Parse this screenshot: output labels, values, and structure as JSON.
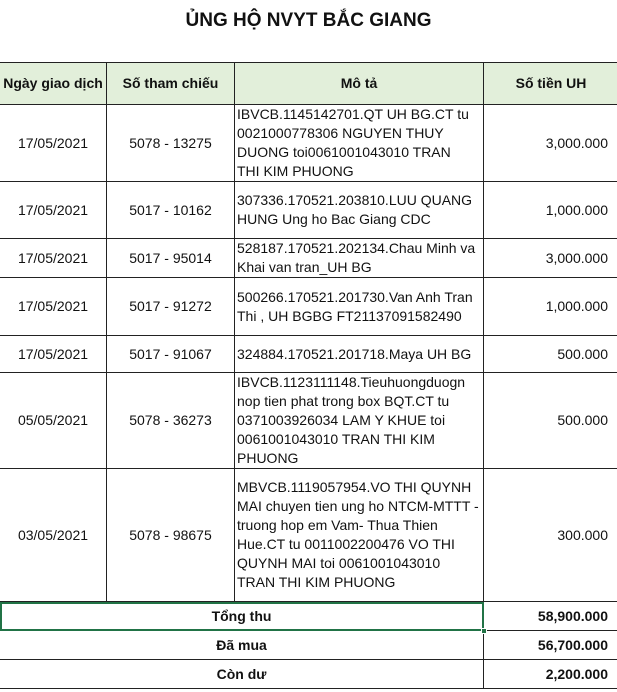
{
  "title": "ỦNG HỘ NVYT BẮC GIANG",
  "columns": [
    "Ngày giao dịch",
    "Số tham chiếu",
    "Mô tả",
    "Số tiền UH"
  ],
  "rows": [
    {
      "date": "17/05/2021",
      "ref": "5078 - 13275",
      "desc": [
        "IBVCB.1145142701.QT UH BG.CT tu",
        "0021000778306 NGUYEN THUY",
        "DUONG toi0061001043010 TRAN",
        "THI KIM PHUONG"
      ],
      "amount": "3,000.000"
    },
    {
      "date": "17/05/2021",
      "ref": "5017 - 10162",
      "desc": [
        "307336.170521.203810.LUU QUANG",
        "HUNG Ung ho Bac Giang CDC"
      ],
      "amount": "1,000.000"
    },
    {
      "date": "17/05/2021",
      "ref": "5017 - 95014",
      "desc": [
        "528187.170521.202134.Chau Minh va",
        "Khai   van tran_UH BG"
      ],
      "amount": "3,000.000"
    },
    {
      "date": "17/05/2021",
      "ref": "5017 - 91272",
      "desc": [
        "500266.170521.201730.Van Anh Tran",
        "Thi , UH BGBG FT21137091582490"
      ],
      "amount": "1,000.000"
    },
    {
      "date": "17/05/2021",
      "ref": "5017 - 91067",
      "desc": [
        "324884.170521.201718.Maya UH BG"
      ],
      "amount": "500.000"
    },
    {
      "date": "05/05/2021",
      "ref": "5078 - 36273",
      "desc": [
        "IBVCB.1123111148.Tieuhuongduogn",
        "nop tien phat trong box BQT.CT tu",
        "0371003926034 LAM Y KHUE toi",
        "0061001043010 TRAN THI KIM",
        "PHUONG"
      ],
      "amount": "500.000"
    },
    {
      "date": "03/05/2021",
      "ref": "5078 - 98675",
      "desc": [
        "MBVCB.1119057954.VO THI QUYNH",
        "MAI chuyen tien ung ho NTCM-MTTT -",
        "truong hop em Vam- Thua Thien",
        "Hue.CT tu 0011002200476 VO THI",
        "QUYNH MAI toi 0061001043010",
        "TRAN THI KIM PHUONG"
      ],
      "amount": "300.000"
    }
  ],
  "totals": [
    {
      "label": "Tổng thu",
      "value": "58,900.000"
    },
    {
      "label": "Đã mua",
      "value": "56,700.000"
    },
    {
      "label": "Còn dư",
      "value": "2,200.000"
    }
  ],
  "colors": {
    "header_bg": "#e2efda",
    "selection": "#217346"
  }
}
